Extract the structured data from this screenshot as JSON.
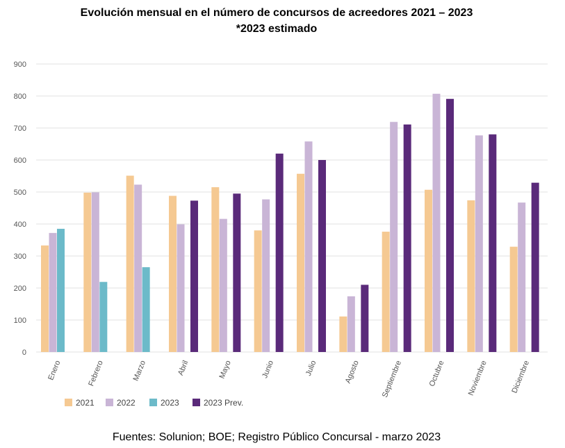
{
  "title_line1": "Evolución mensual en el número de concursos de acreedores 2021 – 2023",
  "title_line2": "*2023 estimado",
  "source": "Fuentes: Solunion; BOE; Registro Público Concursal - marzo 2023",
  "chart_data": {
    "type": "bar",
    "categories": [
      "Enero",
      "Febrero",
      "Marzo",
      "Abril",
      "Mayo",
      "Junio",
      "Julio",
      "Agosto",
      "Septiembre",
      "Octubre",
      "Noviembre",
      "Diciembre"
    ],
    "series": [
      {
        "name": "2021",
        "color": "#f5c992",
        "values": [
          333,
          498,
          551,
          488,
          515,
          380,
          557,
          111,
          376,
          507,
          474,
          329
        ]
      },
      {
        "name": "2022",
        "color": "#c9b5d6",
        "values": [
          372,
          499,
          523,
          399,
          416,
          477,
          658,
          174,
          719,
          807,
          677,
          467
        ]
      },
      {
        "name": "2023",
        "color": "#6cbac9",
        "values": [
          385,
          219,
          265,
          null,
          null,
          null,
          null,
          null,
          null,
          null,
          null,
          null
        ]
      },
      {
        "name": "2023 Prev.",
        "color": "#5a2a7a",
        "values": [
          null,
          null,
          null,
          473,
          495,
          620,
          600,
          210,
          711,
          791,
          680,
          529
        ]
      }
    ],
    "ylim": [
      0,
      900
    ],
    "yticks": [
      0,
      100,
      200,
      300,
      400,
      500,
      600,
      700,
      800,
      900
    ],
    "grid": true,
    "legend_position": "bottom-left",
    "xlabel": "",
    "ylabel": ""
  }
}
